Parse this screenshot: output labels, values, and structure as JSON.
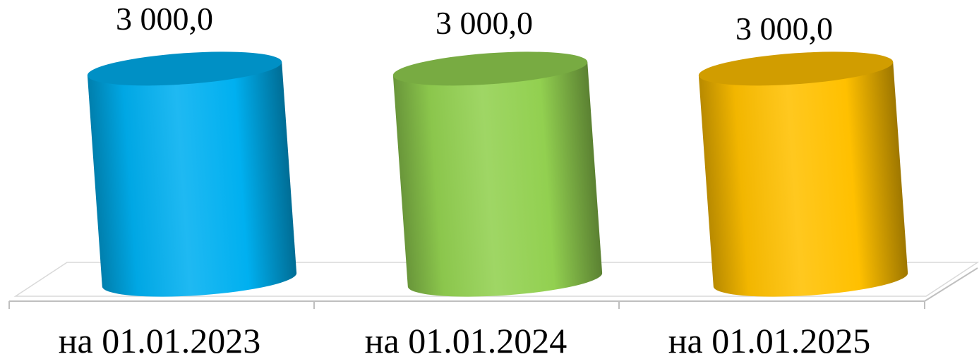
{
  "chart_data": {
    "type": "bar",
    "shape": "cylinder",
    "view": "3d",
    "categories": [
      "на 01.01.2023",
      "на 01.01.2024",
      "на 01.01.2025"
    ],
    "values": [
      3000.0,
      3000.0,
      3000.0
    ],
    "value_labels": [
      "3 000,0",
      "3 000,0",
      "3 000,0"
    ],
    "colors": [
      "#00b0f0",
      "#92d050",
      "#ffc000"
    ],
    "title": "",
    "xlabel": "",
    "ylabel": "",
    "ylim": [
      0,
      3000
    ],
    "grid": false,
    "legend": false
  }
}
